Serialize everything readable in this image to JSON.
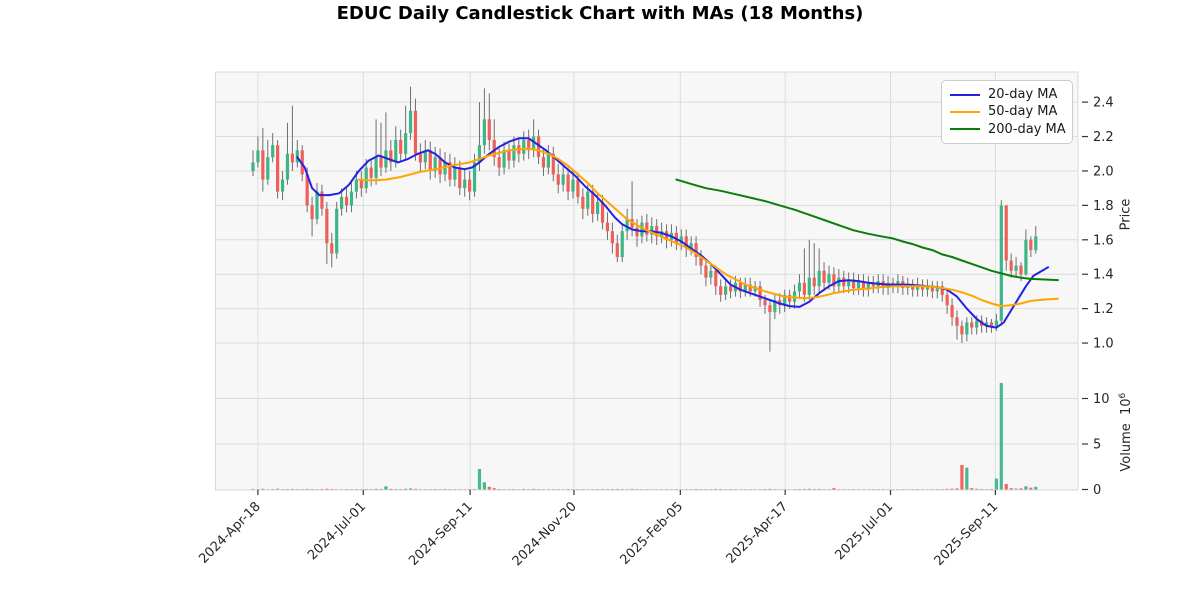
{
  "title": "EDUC Daily Candlestick Chart with MAs (18 Months)",
  "legend": {
    "items": [
      {
        "label": "20-day MA",
        "color": "#2222e0"
      },
      {
        "label": "50-day MA",
        "color": "#ffa500"
      },
      {
        "label": "200-day MA",
        "color": "#0b7d0b"
      }
    ]
  },
  "price_axis": {
    "label": "Price",
    "ticks": [
      2.4,
      2.2,
      2.0,
      1.8,
      1.6,
      1.4,
      1.2,
      1.0
    ],
    "min": 0.89,
    "max": 2.575
  },
  "volume_axis": {
    "label": "Volume",
    "scale_base": "10",
    "scale_exp": "6",
    "ticks": [
      0,
      5,
      10
    ],
    "max": 13.35
  },
  "x_axis": {
    "tick_labels": [
      "2024-Apr-18",
      "2024-Jul-01",
      "2024-Sep-11",
      "2024-Nov-20",
      "2025-Feb-05",
      "2025-Apr-17",
      "2025-Jul-01",
      "2025-Sep-11"
    ],
    "tick_i": [
      1.0,
      22.4,
      44.1,
      65.2,
      86.8,
      108.1,
      129.5,
      150.8
    ]
  },
  "colors": {
    "up": "#3db586",
    "down": "#ef5f55",
    "wick": "#6e6e6e",
    "ma20": "#2222e0",
    "ma50": "#ffa500",
    "ma200": "#0b7d0b",
    "plot_bg": "#f7f7f8",
    "grid": "#dcdcdc",
    "spine": "#d9d9d9",
    "tick_text": "#262626"
  },
  "chart_data": {
    "type": "candlestick",
    "panels": [
      "price",
      "volume"
    ],
    "note": "~18 months of EDUC daily bars Apr-2024..Oct-2025, sampled every ~2.4 trading days (160 bars)",
    "opens": [
      2.0,
      2.05,
      2.12,
      1.95,
      2.08,
      2.15,
      1.88,
      1.95,
      2.1,
      2.05,
      2.12,
      1.98,
      1.8,
      1.72,
      1.88,
      1.78,
      1.58,
      1.52,
      1.78,
      1.85,
      1.8,
      1.88,
      1.95,
      1.9,
      2.02,
      1.96,
      2.08,
      2.02,
      2.12,
      2.05,
      2.18,
      2.1,
      2.22,
      2.35,
      2.1,
      2.05,
      2.12,
      2.0,
      2.08,
      1.98,
      2.05,
      1.95,
      2.02,
      1.9,
      1.95,
      1.88,
      2.05,
      2.15,
      2.3,
      2.18,
      2.08,
      2.02,
      2.12,
      2.06,
      2.15,
      2.1,
      2.18,
      2.12,
      2.2,
      2.08,
      2.02,
      2.1,
      1.98,
      1.92,
      1.98,
      1.88,
      1.95,
      1.85,
      1.78,
      1.88,
      1.75,
      1.82,
      1.7,
      1.65,
      1.58,
      1.5,
      1.65,
      1.72,
      1.67,
      1.62,
      1.7,
      1.63,
      1.68,
      1.62,
      1.65,
      1.6,
      1.64,
      1.58,
      1.62,
      1.55,
      1.58,
      1.5,
      1.45,
      1.38,
      1.42,
      1.33,
      1.28,
      1.33,
      1.3,
      1.35,
      1.3,
      1.34,
      1.3,
      1.33,
      1.25,
      1.22,
      1.18,
      1.25,
      1.22,
      1.28,
      1.24,
      1.3,
      1.35,
      1.28,
      1.38,
      1.33,
      1.42,
      1.35,
      1.4,
      1.33,
      1.38,
      1.33,
      1.37,
      1.32,
      1.36,
      1.31,
      1.35,
      1.33,
      1.36,
      1.32,
      1.35,
      1.33,
      1.36,
      1.32,
      1.34,
      1.31,
      1.34,
      1.31,
      1.33,
      1.3,
      1.33,
      1.28,
      1.22,
      1.15,
      1.1,
      1.05,
      1.12,
      1.09,
      1.13,
      1.1,
      1.12,
      1.1,
      1.13,
      1.8,
      1.48,
      1.42,
      1.45,
      1.4,
      1.6,
      1.54
    ],
    "closes": [
      2.05,
      2.12,
      1.95,
      2.08,
      2.15,
      1.88,
      1.95,
      2.1,
      2.05,
      2.12,
      1.98,
      1.8,
      1.72,
      1.88,
      1.78,
      1.58,
      1.52,
      1.78,
      1.85,
      1.8,
      1.88,
      1.95,
      1.9,
      2.02,
      1.96,
      2.08,
      2.02,
      2.12,
      2.05,
      2.18,
      2.1,
      2.22,
      2.35,
      2.1,
      2.05,
      2.12,
      2.0,
      2.08,
      1.98,
      2.05,
      1.95,
      2.02,
      1.9,
      1.95,
      1.88,
      2.05,
      2.15,
      2.3,
      2.18,
      2.08,
      2.02,
      2.12,
      2.06,
      2.15,
      2.1,
      2.18,
      2.12,
      2.2,
      2.08,
      2.02,
      2.1,
      1.98,
      1.92,
      1.98,
      1.88,
      1.95,
      1.85,
      1.78,
      1.88,
      1.75,
      1.82,
      1.7,
      1.65,
      1.58,
      1.5,
      1.65,
      1.72,
      1.67,
      1.62,
      1.7,
      1.63,
      1.68,
      1.62,
      1.65,
      1.6,
      1.64,
      1.58,
      1.62,
      1.55,
      1.58,
      1.5,
      1.45,
      1.38,
      1.42,
      1.33,
      1.28,
      1.33,
      1.3,
      1.35,
      1.3,
      1.34,
      1.3,
      1.33,
      1.25,
      1.22,
      1.18,
      1.25,
      1.22,
      1.28,
      1.24,
      1.3,
      1.35,
      1.28,
      1.38,
      1.33,
      1.42,
      1.35,
      1.4,
      1.33,
      1.38,
      1.33,
      1.37,
      1.32,
      1.36,
      1.31,
      1.35,
      1.33,
      1.36,
      1.32,
      1.35,
      1.33,
      1.36,
      1.32,
      1.34,
      1.31,
      1.34,
      1.31,
      1.33,
      1.3,
      1.33,
      1.28,
      1.22,
      1.15,
      1.1,
      1.05,
      1.12,
      1.09,
      1.13,
      1.1,
      1.12,
      1.1,
      1.13,
      1.8,
      1.48,
      1.42,
      1.45,
      1.4,
      1.6,
      1.54,
      1.62
    ],
    "highs": [
      2.12,
      2.2,
      2.25,
      2.18,
      2.22,
      2.18,
      2.0,
      2.28,
      2.38,
      2.18,
      2.15,
      2.02,
      1.85,
      1.93,
      1.92,
      1.82,
      1.64,
      1.82,
      1.9,
      1.9,
      1.93,
      2.0,
      2.0,
      2.07,
      2.06,
      2.3,
      2.28,
      2.34,
      2.18,
      2.26,
      2.24,
      2.38,
      2.49,
      2.42,
      2.16,
      2.18,
      2.17,
      2.14,
      2.13,
      2.11,
      2.1,
      2.08,
      2.06,
      2.01,
      2.0,
      2.1,
      2.4,
      2.48,
      2.45,
      2.3,
      2.13,
      2.17,
      2.16,
      2.2,
      2.19,
      2.23,
      2.24,
      2.3,
      2.24,
      2.13,
      2.15,
      2.14,
      2.04,
      2.03,
      2.02,
      2.0,
      1.99,
      1.9,
      1.92,
      1.92,
      1.87,
      1.86,
      1.76,
      1.7,
      1.63,
      1.69,
      1.78,
      1.94,
      1.72,
      1.74,
      1.75,
      1.73,
      1.72,
      1.7,
      1.69,
      1.69,
      1.68,
      1.66,
      1.66,
      1.62,
      1.62,
      1.54,
      1.49,
      1.46,
      1.45,
      1.37,
      1.37,
      1.37,
      1.39,
      1.38,
      1.38,
      1.38,
      1.36,
      1.36,
      1.28,
      1.25,
      1.28,
      1.29,
      1.31,
      1.31,
      1.34,
      1.4,
      1.55,
      1.6,
      1.58,
      1.55,
      1.47,
      1.45,
      1.44,
      1.43,
      1.42,
      1.41,
      1.41,
      1.4,
      1.4,
      1.39,
      1.39,
      1.4,
      1.4,
      1.39,
      1.38,
      1.4,
      1.39,
      1.38,
      1.37,
      1.38,
      1.37,
      1.37,
      1.36,
      1.36,
      1.36,
      1.31,
      1.26,
      1.19,
      1.13,
      1.15,
      1.15,
      1.16,
      1.16,
      1.15,
      1.14,
      1.17,
      1.83,
      1.8,
      1.52,
      1.5,
      1.47,
      1.66,
      1.62,
      1.68
    ],
    "lows": [
      1.97,
      2.02,
      1.88,
      1.92,
      2.05,
      1.84,
      1.83,
      1.92,
      2.0,
      2.02,
      1.94,
      1.76,
      1.62,
      1.69,
      1.74,
      1.46,
      1.44,
      1.49,
      1.74,
      1.76,
      1.76,
      1.84,
      1.85,
      1.87,
      1.91,
      1.92,
      1.97,
      1.99,
      2.0,
      2.02,
      2.05,
      2.06,
      2.18,
      2.06,
      1.99,
      2.01,
      1.95,
      1.96,
      1.93,
      1.94,
      1.91,
      1.91,
      1.86,
      1.85,
      1.83,
      1.85,
      2.0,
      2.1,
      2.12,
      2.03,
      1.97,
      1.98,
      2.01,
      2.02,
      2.05,
      2.06,
      2.07,
      2.08,
      2.04,
      1.97,
      1.98,
      1.94,
      1.87,
      1.88,
      1.83,
      1.84,
      1.81,
      1.72,
      1.74,
      1.7,
      1.71,
      1.66,
      1.6,
      1.52,
      1.47,
      1.47,
      1.6,
      1.62,
      1.56,
      1.58,
      1.59,
      1.58,
      1.57,
      1.58,
      1.55,
      1.56,
      1.54,
      1.54,
      1.5,
      1.51,
      1.45,
      1.4,
      1.33,
      1.34,
      1.28,
      1.24,
      1.25,
      1.26,
      1.27,
      1.26,
      1.27,
      1.27,
      1.27,
      1.21,
      1.17,
      0.95,
      1.14,
      1.17,
      1.18,
      1.2,
      1.2,
      1.26,
      1.24,
      1.25,
      1.28,
      1.29,
      1.31,
      1.31,
      1.29,
      1.29,
      1.29,
      1.29,
      1.28,
      1.28,
      1.27,
      1.27,
      1.29,
      1.29,
      1.28,
      1.28,
      1.29,
      1.29,
      1.28,
      1.28,
      1.27,
      1.27,
      1.27,
      1.27,
      1.26,
      1.26,
      1.24,
      1.17,
      1.1,
      1.02,
      1.0,
      1.01,
      1.05,
      1.05,
      1.06,
      1.06,
      1.06,
      1.07,
      1.1,
      1.42,
      1.38,
      1.39,
      1.36,
      1.39,
      1.5,
      1.52
    ],
    "volumes_millions": [
      0.06,
      0.04,
      0.08,
      0.03,
      0.05,
      0.09,
      0.04,
      0.05,
      0.06,
      0.04,
      0.05,
      0.07,
      0.05,
      0.04,
      0.06,
      0.08,
      0.06,
      0.04,
      0.03,
      0.05,
      0.04,
      0.05,
      0.04,
      0.06,
      0.05,
      0.08,
      0.06,
      0.35,
      0.07,
      0.05,
      0.05,
      0.08,
      0.12,
      0.07,
      0.04,
      0.05,
      0.04,
      0.05,
      0.04,
      0.06,
      0.05,
      0.04,
      0.04,
      0.03,
      0.05,
      0.06,
      2.25,
      0.8,
      0.3,
      0.15,
      0.05,
      0.04,
      0.04,
      0.05,
      0.03,
      0.06,
      0.04,
      0.07,
      0.05,
      0.04,
      0.04,
      0.05,
      0.04,
      0.03,
      0.05,
      0.04,
      0.04,
      0.05,
      0.03,
      0.04,
      0.05,
      0.06,
      0.04,
      0.05,
      0.06,
      0.05,
      0.04,
      0.07,
      0.04,
      0.03,
      0.04,
      0.03,
      0.04,
      0.03,
      0.04,
      0.03,
      0.04,
      0.03,
      0.03,
      0.04,
      0.05,
      0.04,
      0.05,
      0.04,
      0.06,
      0.05,
      0.03,
      0.04,
      0.04,
      0.03,
      0.04,
      0.03,
      0.03,
      0.04,
      0.05,
      0.07,
      0.04,
      0.03,
      0.04,
      0.03,
      0.04,
      0.05,
      0.06,
      0.08,
      0.06,
      0.07,
      0.04,
      0.04,
      0.15,
      0.03,
      0.04,
      0.03,
      0.04,
      0.03,
      0.04,
      0.03,
      0.04,
      0.03,
      0.04,
      0.03,
      0.03,
      0.04,
      0.03,
      0.03,
      0.04,
      0.04,
      0.03,
      0.03,
      0.03,
      0.04,
      0.05,
      0.07,
      0.09,
      0.12,
      2.7,
      2.4,
      0.15,
      0.08,
      0.06,
      0.05,
      0.06,
      1.2,
      11.7,
      0.6,
      0.15,
      0.1,
      0.12,
      0.35,
      0.2,
      0.3
    ],
    "ma20": [
      [
        9,
        2.08
      ],
      [
        10.5,
        2.02
      ],
      [
        12,
        1.9
      ],
      [
        13.5,
        1.86
      ],
      [
        15.5,
        1.86
      ],
      [
        17.5,
        1.87
      ],
      [
        19.5,
        1.92
      ],
      [
        21.5,
        2.0
      ],
      [
        23.5,
        2.06
      ],
      [
        25.5,
        2.09
      ],
      [
        27.5,
        2.07
      ],
      [
        29.5,
        2.05
      ],
      [
        31.5,
        2.07
      ],
      [
        33.5,
        2.1
      ],
      [
        35.5,
        2.12
      ],
      [
        37,
        2.1
      ],
      [
        39,
        2.05
      ],
      [
        41,
        2.02
      ],
      [
        43,
        2.01
      ],
      [
        44.5,
        2.02
      ],
      [
        46,
        2.05
      ],
      [
        48,
        2.1
      ],
      [
        50,
        2.14
      ],
      [
        52,
        2.17
      ],
      [
        54,
        2.19
      ],
      [
        56,
        2.19
      ],
      [
        57.5,
        2.16
      ],
      [
        59.5,
        2.12
      ],
      [
        61.5,
        2.07
      ],
      [
        63.5,
        2.02
      ],
      [
        65.5,
        1.97
      ],
      [
        67.5,
        1.91
      ],
      [
        69.5,
        1.86
      ],
      [
        71.5,
        1.8
      ],
      [
        73.5,
        1.73
      ],
      [
        75,
        1.69
      ],
      [
        77,
        1.66
      ],
      [
        79,
        1.65
      ],
      [
        81,
        1.65
      ],
      [
        83,
        1.64
      ],
      [
        85,
        1.62
      ],
      [
        87,
        1.59
      ],
      [
        89,
        1.55
      ],
      [
        91,
        1.51
      ],
      [
        93,
        1.46
      ],
      [
        95,
        1.4
      ],
      [
        97,
        1.34
      ],
      [
        99,
        1.31
      ],
      [
        101,
        1.29
      ],
      [
        103,
        1.27
      ],
      [
        105,
        1.25
      ],
      [
        107,
        1.23
      ],
      [
        109,
        1.215
      ],
      [
        111,
        1.21
      ],
      [
        113,
        1.24
      ],
      [
        115,
        1.29
      ],
      [
        117,
        1.33
      ],
      [
        119,
        1.36
      ],
      [
        121,
        1.365
      ],
      [
        123,
        1.36
      ],
      [
        125,
        1.35
      ],
      [
        127,
        1.345
      ],
      [
        129,
        1.34
      ],
      [
        131,
        1.34
      ],
      [
        133,
        1.34
      ],
      [
        135,
        1.335
      ],
      [
        137,
        1.33
      ],
      [
        139,
        1.325
      ],
      [
        141,
        1.31
      ],
      [
        143,
        1.27
      ],
      [
        145,
        1.2
      ],
      [
        147,
        1.14
      ],
      [
        149,
        1.1
      ],
      [
        151,
        1.09
      ],
      [
        152.5,
        1.12
      ],
      [
        154,
        1.19
      ],
      [
        155.5,
        1.26
      ],
      [
        157,
        1.33
      ],
      [
        158.5,
        1.39
      ],
      [
        161.5,
        1.44
      ]
    ],
    "ma50": [
      [
        21.5,
        1.95
      ],
      [
        24,
        1.945
      ],
      [
        27,
        1.95
      ],
      [
        30,
        1.965
      ],
      [
        32,
        1.98
      ],
      [
        34,
        1.995
      ],
      [
        36,
        2.005
      ],
      [
        38,
        2.015
      ],
      [
        40,
        2.03
      ],
      [
        42,
        2.04
      ],
      [
        44,
        2.05
      ],
      [
        46,
        2.07
      ],
      [
        48,
        2.09
      ],
      [
        50,
        2.105
      ],
      [
        52,
        2.12
      ],
      [
        54,
        2.125
      ],
      [
        56,
        2.13
      ],
      [
        58,
        2.12
      ],
      [
        60,
        2.1
      ],
      [
        62,
        2.07
      ],
      [
        64,
        2.03
      ],
      [
        66,
        1.98
      ],
      [
        68,
        1.93
      ],
      [
        70,
        1.87
      ],
      [
        72,
        1.82
      ],
      [
        74,
        1.77
      ],
      [
        76,
        1.72
      ],
      [
        78,
        1.685
      ],
      [
        80,
        1.655
      ],
      [
        82,
        1.63
      ],
      [
        84,
        1.605
      ],
      [
        86,
        1.58
      ],
      [
        88,
        1.555
      ],
      [
        90,
        1.52
      ],
      [
        92,
        1.48
      ],
      [
        94,
        1.44
      ],
      [
        96,
        1.4
      ],
      [
        98,
        1.37
      ],
      [
        100,
        1.34
      ],
      [
        102,
        1.32
      ],
      [
        104,
        1.3
      ],
      [
        106,
        1.285
      ],
      [
        108,
        1.27
      ],
      [
        110,
        1.265
      ],
      [
        112,
        1.26
      ],
      [
        114,
        1.265
      ],
      [
        116,
        1.275
      ],
      [
        118,
        1.29
      ],
      [
        120,
        1.3
      ],
      [
        122,
        1.31
      ],
      [
        124,
        1.315
      ],
      [
        126,
        1.32
      ],
      [
        128,
        1.327
      ],
      [
        130,
        1.33
      ],
      [
        132,
        1.33
      ],
      [
        134,
        1.33
      ],
      [
        136,
        1.33
      ],
      [
        138,
        1.327
      ],
      [
        140,
        1.32
      ],
      [
        142,
        1.31
      ],
      [
        144,
        1.295
      ],
      [
        146,
        1.275
      ],
      [
        148,
        1.25
      ],
      [
        150,
        1.23
      ],
      [
        152,
        1.215
      ],
      [
        154,
        1.22
      ],
      [
        156,
        1.23
      ],
      [
        158,
        1.245
      ],
      [
        161,
        1.253
      ],
      [
        163.5,
        1.258
      ]
    ],
    "ma200": [
      [
        86,
        1.95
      ],
      [
        89,
        1.925
      ],
      [
        92,
        1.9
      ],
      [
        95,
        1.885
      ],
      [
        98,
        1.865
      ],
      [
        101,
        1.845
      ],
      [
        104,
        1.825
      ],
      [
        107,
        1.8
      ],
      [
        110,
        1.775
      ],
      [
        113,
        1.745
      ],
      [
        116,
        1.715
      ],
      [
        119,
        1.685
      ],
      [
        122,
        1.655
      ],
      [
        125,
        1.635
      ],
      [
        128,
        1.618
      ],
      [
        130,
        1.608
      ],
      [
        132,
        1.59
      ],
      [
        134,
        1.575
      ],
      [
        136,
        1.555
      ],
      [
        138,
        1.54
      ],
      [
        140,
        1.515
      ],
      [
        142,
        1.5
      ],
      [
        144,
        1.48
      ],
      [
        146,
        1.46
      ],
      [
        148,
        1.44
      ],
      [
        150,
        1.42
      ],
      [
        152,
        1.405
      ],
      [
        154,
        1.39
      ],
      [
        156,
        1.38
      ],
      [
        158,
        1.373
      ],
      [
        162,
        1.368
      ],
      [
        163.5,
        1.366
      ]
    ]
  }
}
